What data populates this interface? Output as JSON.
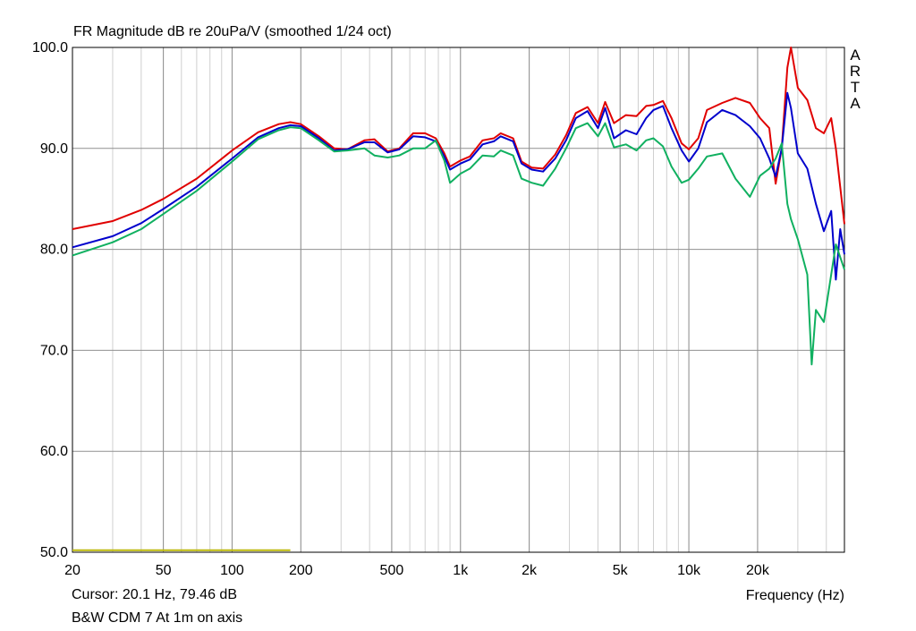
{
  "chart_data": {
    "type": "line",
    "title": "FR Magnitude dB re 20uPa/V (smoothed 1/24 oct)",
    "xlabel": "Frequency (Hz)",
    "ylabel": "",
    "xscale": "log",
    "xlim": [
      20,
      48000
    ],
    "ylim": [
      50,
      100
    ],
    "grid": true,
    "x_ticks": [
      20,
      50,
      100,
      200,
      500,
      1000,
      2000,
      5000,
      10000,
      20000
    ],
    "x_tick_labels": [
      "20",
      "50",
      "100",
      "200",
      "500",
      "1k",
      "2k",
      "5k",
      "10k",
      "20k"
    ],
    "y_ticks": [
      50,
      60,
      70,
      80,
      90,
      100
    ],
    "y_tick_labels": [
      "50.0",
      "60.0",
      "70.0",
      "80.0",
      "90.0",
      "100.0"
    ],
    "series": [
      {
        "color": "#e00000",
        "points": [
          [
            20,
            82.0
          ],
          [
            30,
            82.8
          ],
          [
            40,
            83.9
          ],
          [
            50,
            85.0
          ],
          [
            70,
            87.0
          ],
          [
            100,
            89.8
          ],
          [
            130,
            91.6
          ],
          [
            160,
            92.4
          ],
          [
            180,
            92.6
          ],
          [
            200,
            92.4
          ],
          [
            240,
            91.2
          ],
          [
            280,
            90.0
          ],
          [
            320,
            89.9
          ],
          [
            380,
            90.8
          ],
          [
            420,
            90.9
          ],
          [
            480,
            89.7
          ],
          [
            540,
            90.0
          ],
          [
            620,
            91.5
          ],
          [
            700,
            91.5
          ],
          [
            780,
            91.0
          ],
          [
            850,
            89.5
          ],
          [
            900,
            88.2
          ],
          [
            1000,
            88.8
          ],
          [
            1100,
            89.2
          ],
          [
            1250,
            90.8
          ],
          [
            1400,
            91.0
          ],
          [
            1500,
            91.5
          ],
          [
            1700,
            91.0
          ],
          [
            1850,
            88.7
          ],
          [
            2050,
            88.1
          ],
          [
            2300,
            88.0
          ],
          [
            2600,
            89.4
          ],
          [
            2900,
            91.3
          ],
          [
            3200,
            93.5
          ],
          [
            3600,
            94.1
          ],
          [
            4000,
            92.5
          ],
          [
            4300,
            94.6
          ],
          [
            4700,
            92.5
          ],
          [
            5300,
            93.3
          ],
          [
            5900,
            93.2
          ],
          [
            6500,
            94.2
          ],
          [
            7000,
            94.3
          ],
          [
            7700,
            94.7
          ],
          [
            8400,
            93.0
          ],
          [
            9300,
            90.5
          ],
          [
            10000,
            89.9
          ],
          [
            11000,
            91.0
          ],
          [
            12000,
            93.8
          ],
          [
            14000,
            94.5
          ],
          [
            16000,
            95.0
          ],
          [
            18500,
            94.5
          ],
          [
            20500,
            93.0
          ],
          [
            22500,
            92.0
          ],
          [
            24000,
            86.5
          ],
          [
            25500,
            90.0
          ],
          [
            27000,
            98.0
          ],
          [
            28000,
            100.0
          ],
          [
            30000,
            96.0
          ],
          [
            33000,
            94.8
          ],
          [
            36000,
            92.0
          ],
          [
            39000,
            91.5
          ],
          [
            42000,
            93.0
          ],
          [
            44000,
            90.0
          ],
          [
            48000,
            82.5
          ]
        ]
      },
      {
        "color": "#0000cc",
        "points": [
          [
            20,
            80.2
          ],
          [
            30,
            81.3
          ],
          [
            40,
            82.6
          ],
          [
            50,
            84.0
          ],
          [
            70,
            86.2
          ],
          [
            100,
            89.0
          ],
          [
            130,
            91.1
          ],
          [
            160,
            92.0
          ],
          [
            180,
            92.3
          ],
          [
            200,
            92.2
          ],
          [
            240,
            91.0
          ],
          [
            280,
            89.8
          ],
          [
            320,
            89.9
          ],
          [
            380,
            90.6
          ],
          [
            420,
            90.6
          ],
          [
            480,
            89.6
          ],
          [
            540,
            89.9
          ],
          [
            620,
            91.2
          ],
          [
            700,
            91.1
          ],
          [
            780,
            90.7
          ],
          [
            850,
            89.2
          ],
          [
            900,
            87.9
          ],
          [
            1000,
            88.5
          ],
          [
            1100,
            88.9
          ],
          [
            1250,
            90.4
          ],
          [
            1400,
            90.7
          ],
          [
            1500,
            91.2
          ],
          [
            1700,
            90.7
          ],
          [
            1850,
            88.5
          ],
          [
            2050,
            87.9
          ],
          [
            2300,
            87.7
          ],
          [
            2600,
            89.0
          ],
          [
            2900,
            90.8
          ],
          [
            3200,
            93.0
          ],
          [
            3600,
            93.7
          ],
          [
            4000,
            92.0
          ],
          [
            4300,
            94.0
          ],
          [
            4700,
            91.0
          ],
          [
            5300,
            91.8
          ],
          [
            5900,
            91.4
          ],
          [
            6500,
            93.0
          ],
          [
            7000,
            93.8
          ],
          [
            7700,
            94.2
          ],
          [
            8400,
            92.0
          ],
          [
            9300,
            89.8
          ],
          [
            10000,
            88.7
          ],
          [
            11000,
            90.0
          ],
          [
            12000,
            92.6
          ],
          [
            14000,
            93.8
          ],
          [
            16000,
            93.3
          ],
          [
            18500,
            92.2
          ],
          [
            20500,
            91.0
          ],
          [
            22500,
            89.0
          ],
          [
            24000,
            87.2
          ],
          [
            25500,
            90.0
          ],
          [
            27000,
            95.5
          ],
          [
            28000,
            94.0
          ],
          [
            30000,
            89.5
          ],
          [
            33000,
            88.0
          ],
          [
            36000,
            84.5
          ],
          [
            39000,
            81.8
          ],
          [
            42000,
            83.8
          ],
          [
            44000,
            77.0
          ],
          [
            46000,
            82.0
          ],
          [
            48000,
            79.5
          ]
        ]
      },
      {
        "color": "#10b060",
        "points": [
          [
            20,
            79.4
          ],
          [
            30,
            80.7
          ],
          [
            40,
            82.0
          ],
          [
            50,
            83.5
          ],
          [
            70,
            85.8
          ],
          [
            100,
            88.7
          ],
          [
            130,
            90.9
          ],
          [
            160,
            91.8
          ],
          [
            180,
            92.1
          ],
          [
            200,
            92.0
          ],
          [
            240,
            90.8
          ],
          [
            280,
            89.7
          ],
          [
            320,
            89.8
          ],
          [
            380,
            90.0
          ],
          [
            420,
            89.3
          ],
          [
            480,
            89.1
          ],
          [
            540,
            89.3
          ],
          [
            620,
            90.0
          ],
          [
            700,
            90.0
          ],
          [
            780,
            90.8
          ],
          [
            850,
            88.8
          ],
          [
            900,
            86.6
          ],
          [
            1000,
            87.5
          ],
          [
            1100,
            88.0
          ],
          [
            1250,
            89.3
          ],
          [
            1400,
            89.2
          ],
          [
            1500,
            89.8
          ],
          [
            1700,
            89.3
          ],
          [
            1850,
            87.0
          ],
          [
            2050,
            86.6
          ],
          [
            2300,
            86.3
          ],
          [
            2600,
            88.0
          ],
          [
            2900,
            90.0
          ],
          [
            3200,
            92.0
          ],
          [
            3600,
            92.5
          ],
          [
            4000,
            91.2
          ],
          [
            4300,
            92.5
          ],
          [
            4700,
            90.1
          ],
          [
            5300,
            90.4
          ],
          [
            5900,
            89.8
          ],
          [
            6500,
            90.8
          ],
          [
            7000,
            91.0
          ],
          [
            7700,
            90.2
          ],
          [
            8400,
            88.2
          ],
          [
            9300,
            86.6
          ],
          [
            10000,
            86.9
          ],
          [
            11000,
            88.0
          ],
          [
            12000,
            89.2
          ],
          [
            14000,
            89.5
          ],
          [
            16000,
            87.0
          ],
          [
            18500,
            85.2
          ],
          [
            20500,
            87.3
          ],
          [
            22500,
            88.0
          ],
          [
            24000,
            89.0
          ],
          [
            25500,
            90.5
          ],
          [
            27000,
            84.5
          ],
          [
            28000,
            83.0
          ],
          [
            30000,
            81.0
          ],
          [
            33000,
            77.5
          ],
          [
            34500,
            68.6
          ],
          [
            36000,
            74.0
          ],
          [
            39000,
            72.8
          ],
          [
            42000,
            77.5
          ],
          [
            44000,
            80.5
          ],
          [
            48000,
            78.0
          ]
        ]
      },
      {
        "color": "#bcb80a",
        "points": [
          [
            20,
            50.2
          ],
          [
            180,
            50.2
          ]
        ]
      }
    ]
  },
  "labels": {
    "title": "FR Magnitude dB re 20uPa/V (smoothed 1/24 oct)",
    "cursor": "Cursor: 20.1 Hz, 79.46 dB",
    "caption": "B&W CDM 7 At 1m on axis",
    "xlabel": "Frequency (Hz)",
    "brand": [
      "A",
      "R",
      "T",
      "A"
    ]
  }
}
